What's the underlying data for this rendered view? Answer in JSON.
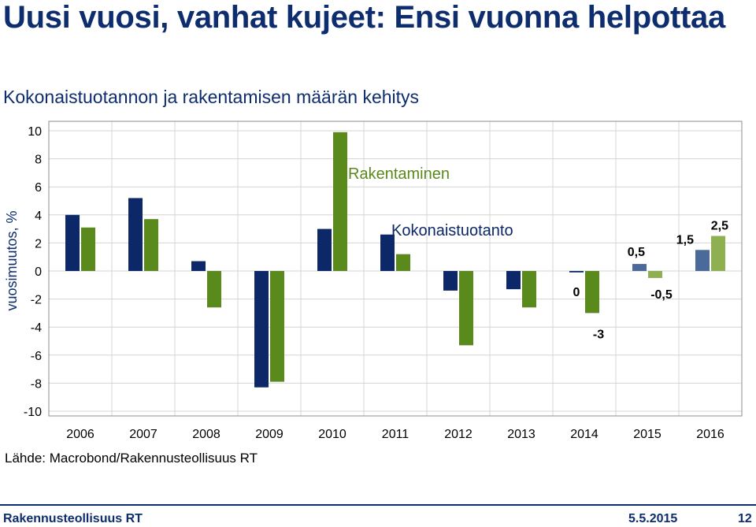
{
  "page": {
    "title": "Uusi vuosi, vanhat kujeet: Ensi vuonna helpottaa",
    "source": "Lähde: Macrobond/Rakennusteollisuus RT"
  },
  "footer": {
    "organization": "Rakennusteollisuus RT",
    "date": "5.5.2015",
    "page_number": "12"
  },
  "colors": {
    "title": "#0d2d6e",
    "kokonaistuotanto": "#0d2868",
    "rakentaminen": "#5a8a1c",
    "kokonaistuotanto_forecast": "#4a6a9a",
    "rakentaminen_forecast": "#8fb050",
    "grid": "#d4d4d4"
  },
  "chart_data": {
    "type": "bar",
    "title": "Kokonaistuotannon ja rakentamisen määrän kehitys",
    "ylabel": "vuosimuutos, %",
    "xlabel": "",
    "ylim": [
      -10,
      10
    ],
    "yticks": [
      10,
      8,
      6,
      4,
      2,
      0,
      -2,
      -4,
      -6,
      -8,
      -10
    ],
    "categories": [
      "2006",
      "2007",
      "2008",
      "2009",
      "2010",
      "2011",
      "2012",
      "2013",
      "2014",
      "2015",
      "2016"
    ],
    "forecast_from": "2015",
    "grid": true,
    "series": [
      {
        "name": "Kokonaistuotanto",
        "values": [
          4.0,
          5.2,
          0.7,
          -8.3,
          3.0,
          2.6,
          -1.4,
          -1.3,
          -0.1,
          0.5,
          1.5
        ]
      },
      {
        "name": "Rakentaminen",
        "values": [
          3.1,
          3.7,
          -2.6,
          -7.9,
          9.9,
          1.2,
          -5.3,
          -2.6,
          -3.0,
          -0.5,
          2.5
        ]
      }
    ],
    "data_labels": [
      {
        "series": "Kokonaistuotanto",
        "category": "2014",
        "text": "0"
      },
      {
        "series": "Rakentaminen",
        "category": "2014",
        "text": "-3"
      },
      {
        "series": "Kokonaistuotanto",
        "category": "2015",
        "text": "0,5"
      },
      {
        "series": "Rakentaminen",
        "category": "2015",
        "text": "-0,5"
      },
      {
        "series": "Kokonaistuotanto",
        "category": "2016",
        "text": "1,5"
      },
      {
        "series": "Rakentaminen",
        "category": "2016",
        "text": "2,5"
      }
    ]
  }
}
